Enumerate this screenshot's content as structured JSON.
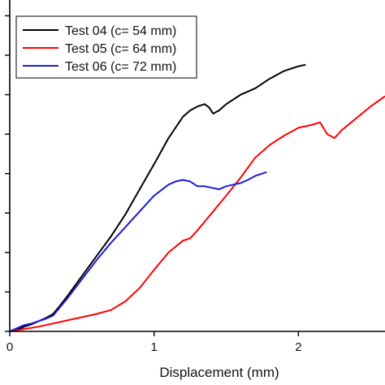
{
  "chart_data": {
    "type": "line",
    "title": "",
    "xlabel": "Displacement (mm)",
    "ylabel": "",
    "xlim": [
      0,
      2.6
    ],
    "ylim": [
      0,
      4.2
    ],
    "x_ticks": [
      0,
      1,
      2
    ],
    "x_tick_labels": [
      "0",
      "1",
      "2"
    ],
    "y_ticks": [
      0,
      0.5,
      1,
      1.5,
      2,
      2.5,
      3,
      3.5,
      4
    ],
    "grid": false,
    "legend_position": "top-left",
    "series": [
      {
        "name": "Test 04 (c= 54 mm)",
        "color": "#000000",
        "x": [
          0,
          0.05,
          0.1,
          0.15,
          0.2,
          0.25,
          0.3,
          0.35,
          0.4,
          0.5,
          0.6,
          0.7,
          0.8,
          0.9,
          1.0,
          1.1,
          1.2,
          1.25,
          1.3,
          1.35,
          1.38,
          1.41,
          1.45,
          1.5,
          1.6,
          1.7,
          1.8,
          1.9,
          2.0,
          2.05
        ],
        "y": [
          0,
          0.02,
          0.06,
          0.09,
          0.13,
          0.17,
          0.22,
          0.33,
          0.45,
          0.7,
          0.95,
          1.2,
          1.48,
          1.8,
          2.12,
          2.45,
          2.72,
          2.8,
          2.85,
          2.88,
          2.84,
          2.76,
          2.8,
          2.88,
          3.0,
          3.08,
          3.2,
          3.3,
          3.36,
          3.38
        ]
      },
      {
        "name": "Test 05 (c= 64 mm)",
        "color": "#ff0000",
        "x": [
          0,
          0.1,
          0.2,
          0.3,
          0.4,
          0.5,
          0.6,
          0.7,
          0.8,
          0.9,
          1.0,
          1.1,
          1.2,
          1.25,
          1.3,
          1.4,
          1.5,
          1.6,
          1.7,
          1.8,
          1.9,
          2.0,
          2.05,
          2.1,
          2.15,
          2.2,
          2.25,
          2.3,
          2.4,
          2.5,
          2.6
        ],
        "y": [
          0,
          0.03,
          0.06,
          0.1,
          0.14,
          0.18,
          0.22,
          0.27,
          0.38,
          0.55,
          0.78,
          1.0,
          1.15,
          1.18,
          1.28,
          1.5,
          1.72,
          1.95,
          2.2,
          2.36,
          2.48,
          2.58,
          2.6,
          2.62,
          2.65,
          2.5,
          2.45,
          2.55,
          2.7,
          2.85,
          2.98
        ]
      },
      {
        "name": "Test 06 (c= 72 mm)",
        "color": "#1a1ad6",
        "x": [
          0,
          0.05,
          0.1,
          0.15,
          0.2,
          0.25,
          0.3,
          0.4,
          0.5,
          0.6,
          0.7,
          0.8,
          0.9,
          1.0,
          1.1,
          1.15,
          1.2,
          1.25,
          1.3,
          1.35,
          1.4,
          1.45,
          1.5,
          1.55,
          1.6,
          1.65,
          1.7,
          1.75,
          1.78
        ],
        "y": [
          0,
          0.04,
          0.08,
          0.1,
          0.13,
          0.16,
          0.2,
          0.42,
          0.66,
          0.9,
          1.12,
          1.32,
          1.52,
          1.72,
          1.86,
          1.9,
          1.92,
          1.9,
          1.84,
          1.84,
          1.82,
          1.8,
          1.84,
          1.86,
          1.88,
          1.92,
          1.97,
          2.0,
          2.02
        ]
      }
    ]
  }
}
